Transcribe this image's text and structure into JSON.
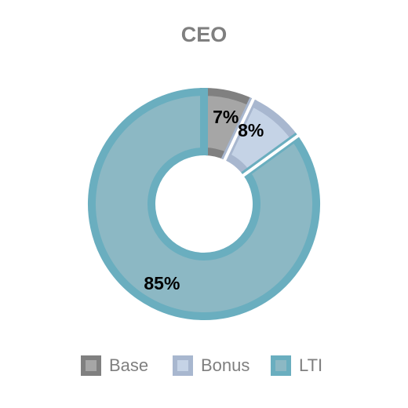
{
  "chart_data": {
    "type": "pie",
    "variant": "donut",
    "title": "CEO",
    "categories": [
      "Base",
      "Bonus",
      "LTI"
    ],
    "values": [
      7,
      8,
      85
    ],
    "labels": [
      "7%",
      "8%",
      "85%"
    ],
    "unit": "%",
    "legend": {
      "placement": "bottom",
      "entries": [
        "Base",
        "Bonus",
        "LTI"
      ]
    },
    "colors": {
      "fill": [
        "#a6a6a6",
        "#c5d3e6",
        "#8cb8c4"
      ],
      "stroke": [
        "#808080",
        "#a8b7cf",
        "#6aaebf"
      ]
    }
  }
}
